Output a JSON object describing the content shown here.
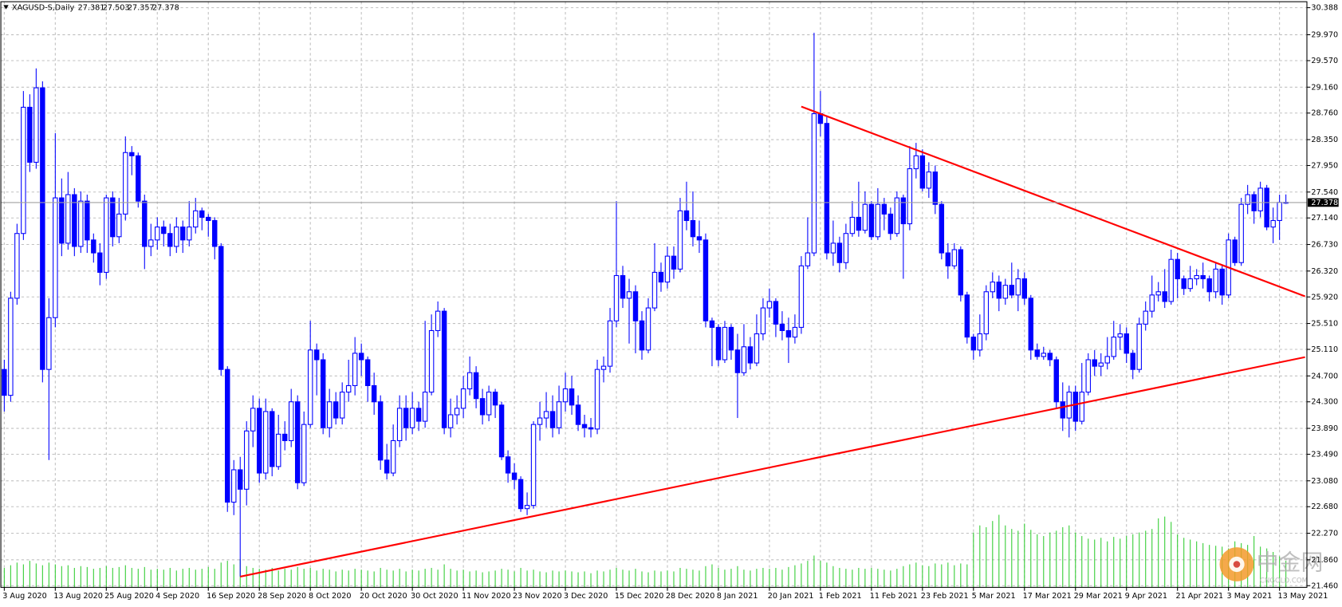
{
  "chart_data": {
    "type": "candlestick",
    "title": "XAGUSD-S,Daily",
    "categories": [
      "3 Aug 2020",
      null,
      null,
      null,
      null,
      null,
      null,
      null,
      "13 Aug 2020",
      null,
      null,
      null,
      null,
      null,
      null,
      null,
      "25 Aug 2020",
      null,
      null,
      null,
      null,
      null,
      null,
      null,
      "4 Sep 2020",
      null,
      null,
      null,
      null,
      null,
      null,
      null,
      "16 Sep 2020",
      null,
      null,
      null,
      null,
      null,
      null,
      null,
      "28 Sep 2020",
      null,
      null,
      null,
      null,
      null,
      null,
      null,
      "8 Oct 2020",
      null,
      null,
      null,
      null,
      null,
      null,
      null,
      "20 Oct 2020",
      null,
      null,
      null,
      null,
      null,
      null,
      null,
      "30 Oct 2020",
      null,
      null,
      null,
      null,
      null,
      null,
      null,
      "11 Nov 2020",
      null,
      null,
      null,
      null,
      null,
      null,
      null,
      "23 Nov 2020",
      null,
      null,
      null,
      null,
      null,
      null,
      null,
      "3 Dec 2020",
      null,
      null,
      null,
      null,
      null,
      null,
      null,
      "15 Dec 2020",
      null,
      null,
      null,
      null,
      null,
      null,
      null,
      "28 Dec 2020",
      null,
      null,
      null,
      null,
      null,
      null,
      null,
      "8 Jan 2021",
      null,
      null,
      null,
      null,
      null,
      null,
      null,
      "20 Jan 2021",
      null,
      null,
      null,
      null,
      null,
      null,
      null,
      "1 Feb 2021",
      null,
      null,
      null,
      null,
      null,
      null,
      null,
      "11 Feb 2021",
      null,
      null,
      null,
      null,
      null,
      null,
      null,
      "23 Feb 2021",
      null,
      null,
      null,
      null,
      null,
      null,
      null,
      "5 Mar 2021",
      null,
      null,
      null,
      null,
      null,
      null,
      null,
      "17 Mar 2021",
      null,
      null,
      null,
      null,
      null,
      null,
      null,
      "29 Mar 2021",
      null,
      null,
      null,
      null,
      null,
      null,
      null,
      "9 Apr 2021",
      null,
      null,
      null,
      null,
      null,
      null,
      null,
      "21 Apr 2021",
      null,
      null,
      null,
      null,
      null,
      null,
      null,
      "3 May 2021",
      null,
      null,
      null,
      null,
      null,
      null,
      null,
      "13 May 2021",
      null
    ],
    "open": [
      24.8,
      24.4,
      25.9,
      26.9,
      28.85,
      28.0,
      29.15,
      24.8,
      25.6,
      27.45,
      26.75,
      27.5,
      26.7,
      27.4,
      26.8,
      26.6,
      26.3,
      27.45,
      26.85,
      27.2,
      28.15,
      28.1,
      27.4,
      26.7,
      26.8,
      27.0,
      26.9,
      26.7,
      27.0,
      26.8,
      27.0,
      27.25,
      27.15,
      27.1,
      26.7,
      24.8,
      22.75,
      23.25,
      22.95,
      23.85,
      24.2,
      23.2,
      24.15,
      23.3,
      23.8,
      23.7,
      24.3,
      23.05,
      23.95,
      25.1,
      24.95,
      23.9,
      24.3,
      24.05,
      24.45,
      24.55,
      25.05,
      24.95,
      24.55,
      24.3,
      23.4,
      23.2,
      23.7,
      24.2,
      23.9,
      24.2,
      24.0,
      24.45,
      25.4,
      25.7,
      23.9,
      24.1,
      24.2,
      24.5,
      24.75,
      24.35,
      24.1,
      24.45,
      24.25,
      23.45,
      23.2,
      23.1,
      22.65,
      22.7,
      23.95,
      24.05,
      24.15,
      23.9,
      24.3,
      24.5,
      24.25,
      23.95,
      23.9,
      23.88,
      24.8,
      24.85,
      25.55,
      26.25,
      25.9,
      26.0,
      25.55,
      25.1,
      25.75,
      26.3,
      26.15,
      26.55,
      26.35,
      27.25,
      27.1,
      26.85,
      26.8,
      25.55,
      25.45,
      24.95,
      25.45,
      25.1,
      24.75,
      25.15,
      24.9,
      25.35,
      25.75,
      25.85,
      25.5,
      25.4,
      25.3,
      25.45,
      26.4,
      26.6,
      28.75,
      28.6,
      26.6,
      26.75,
      26.45,
      26.9,
      27.15,
      26.95,
      27.35,
      26.85,
      27.35,
      27.2,
      26.9,
      27.45,
      27.05,
      27.9,
      28.1,
      27.6,
      27.85,
      27.35,
      26.6,
      26.4,
      26.65,
      25.95,
      25.3,
      25.1,
      25.35,
      26.0,
      26.15,
      25.9,
      26.1,
      25.95,
      26.2,
      25.9,
      25.1,
      25.0,
      25.05,
      24.95,
      24.3,
      24.05,
      24.45,
      24.0,
      24.45,
      24.95,
      24.85,
      24.9,
      25.0,
      25.3,
      25.35,
      25.05,
      24.8,
      25.5,
      25.7,
      25.95,
      26.0,
      25.85,
      26.5,
      26.2,
      26.05,
      26.2,
      26.25,
      26.2,
      26.0,
      26.35,
      25.95,
      26.8,
      26.45,
      27.35,
      27.5,
      27.25,
      27.6,
      27.0,
      27.1,
      27.381
    ],
    "high": [
      24.95,
      26.0,
      27.05,
      29.1,
      29.05,
      29.45,
      29.25,
      25.9,
      28.45,
      27.75,
      27.85,
      27.6,
      27.55,
      27.5,
      26.9,
      26.75,
      27.5,
      27.55,
      27.45,
      28.4,
      28.25,
      28.15,
      27.5,
      27.05,
      27.15,
      27.1,
      27.05,
      27.15,
      27.1,
      27.4,
      27.45,
      27.3,
      27.2,
      27.15,
      26.75,
      24.85,
      23.4,
      23.45,
      24.0,
      24.4,
      24.35,
      24.35,
      24.2,
      24.1,
      24.0,
      24.5,
      24.4,
      24.15,
      25.55,
      25.2,
      25.05,
      24.5,
      24.45,
      24.6,
      24.95,
      25.3,
      25.2,
      25.0,
      24.75,
      24.4,
      23.65,
      23.95,
      24.4,
      24.4,
      24.45,
      24.3,
      25.55,
      25.65,
      25.85,
      25.75,
      24.35,
      24.4,
      24.7,
      25.0,
      24.85,
      24.5,
      24.55,
      24.5,
      24.3,
      23.55,
      23.35,
      23.15,
      22.9,
      24.0,
      24.3,
      24.45,
      24.4,
      24.55,
      24.75,
      24.7,
      24.4,
      24.1,
      24.05,
      24.95,
      25.0,
      25.75,
      27.4,
      26.4,
      26.2,
      26.1,
      25.7,
      25.9,
      26.75,
      26.45,
      26.7,
      26.7,
      27.45,
      27.7,
      27.55,
      27.1,
      26.9,
      25.6,
      25.5,
      25.55,
      25.5,
      25.35,
      25.5,
      25.3,
      25.65,
      25.9,
      26.05,
      25.9,
      25.7,
      25.6,
      25.65,
      26.55,
      27.15,
      30.0,
      29.1,
      28.7,
      27.1,
      26.85,
      27.05,
      27.4,
      27.7,
      27.55,
      27.4,
      27.6,
      27.45,
      27.3,
      27.55,
      27.5,
      28.25,
      28.3,
      28.2,
      28.0,
      27.95,
      27.4,
      26.75,
      26.75,
      26.7,
      26.0,
      25.35,
      25.65,
      26.1,
      26.3,
      26.25,
      26.2,
      26.45,
      26.35,
      26.3,
      25.95,
      25.2,
      25.15,
      25.1,
      25.0,
      24.6,
      24.55,
      24.55,
      24.9,
      25.05,
      25.1,
      25.05,
      25.3,
      25.55,
      25.5,
      25.45,
      25.1,
      25.6,
      25.85,
      26.25,
      26.15,
      26.35,
      26.65,
      26.6,
      26.25,
      26.4,
      26.35,
      26.45,
      26.25,
      26.45,
      26.4,
      26.9,
      26.85,
      27.45,
      27.65,
      27.55,
      27.7,
      27.65,
      27.3,
      27.5,
      27.503
    ],
    "low": [
      24.15,
      24.3,
      25.8,
      26.8,
      27.85,
      27.9,
      24.6,
      23.4,
      25.45,
      26.55,
      26.65,
      26.55,
      26.6,
      26.6,
      26.45,
      26.1,
      26.2,
      26.7,
      26.75,
      27.1,
      27.8,
      27.3,
      26.35,
      26.55,
      26.65,
      26.7,
      26.55,
      26.6,
      26.6,
      26.7,
      26.9,
      26.95,
      26.85,
      26.5,
      24.7,
      22.6,
      22.55,
      21.6,
      22.7,
      23.6,
      23.05,
      23.1,
      23.15,
      23.25,
      23.55,
      23.6,
      22.95,
      23.0,
      23.9,
      24.4,
      23.8,
      23.75,
      23.95,
      23.95,
      24.3,
      24.4,
      24.7,
      24.3,
      24.1,
      23.25,
      23.1,
      23.15,
      23.6,
      23.7,
      23.8,
      23.85,
      23.9,
      24.4,
      25.3,
      23.8,
      23.75,
      23.95,
      24.05,
      24.4,
      24.2,
      23.95,
      24.0,
      24.05,
      23.4,
      23.05,
      22.95,
      22.6,
      22.55,
      22.65,
      23.7,
      23.9,
      23.75,
      23.8,
      24.15,
      24.1,
      23.85,
      23.75,
      23.75,
      23.8,
      24.6,
      24.75,
      25.45,
      25.75,
      25.2,
      25.05,
      24.95,
      25.05,
      25.7,
      26.0,
      26.05,
      26.2,
      26.3,
      26.95,
      26.7,
      26.6,
      25.45,
      24.85,
      24.85,
      24.9,
      24.95,
      24.05,
      24.7,
      24.8,
      24.85,
      25.25,
      25.6,
      25.3,
      25.25,
      24.9,
      25.2,
      25.35,
      26.35,
      26.55,
      28.4,
      26.5,
      26.4,
      26.3,
      26.35,
      26.85,
      26.85,
      26.9,
      26.8,
      26.8,
      26.95,
      26.8,
      26.85,
      26.2,
      26.95,
      27.75,
      27.55,
      27.45,
      27.2,
      26.5,
      26.2,
      26.35,
      25.85,
      25.2,
      24.95,
      25.0,
      25.25,
      25.9,
      25.7,
      25.8,
      25.9,
      25.7,
      25.8,
      24.95,
      24.95,
      24.95,
      24.85,
      24.2,
      23.85,
      23.75,
      23.85,
      23.95,
      24.4,
      24.7,
      24.7,
      24.8,
      24.95,
      25.1,
      24.9,
      24.65,
      24.75,
      25.4,
      25.6,
      25.85,
      25.75,
      25.8,
      25.9,
      25.95,
      26.0,
      26.1,
      26.05,
      25.85,
      25.9,
      25.8,
      25.9,
      26.4,
      26.4,
      27.2,
      27.05,
      27.15,
      26.95,
      26.75,
      26.8,
      27.357
    ],
    "close": [
      24.4,
      25.9,
      26.9,
      28.85,
      28.0,
      29.15,
      24.8,
      25.6,
      27.45,
      26.75,
      27.5,
      26.7,
      27.4,
      26.8,
      26.6,
      26.3,
      27.45,
      26.85,
      27.2,
      28.15,
      28.1,
      27.4,
      26.7,
      26.8,
      27.0,
      26.9,
      26.7,
      27.0,
      26.8,
      27.0,
      27.25,
      27.15,
      27.1,
      26.7,
      24.8,
      22.75,
      23.25,
      22.95,
      23.85,
      24.2,
      23.2,
      24.15,
      23.3,
      23.8,
      23.7,
      24.3,
      23.05,
      23.95,
      25.1,
      24.95,
      23.9,
      24.3,
      24.05,
      24.45,
      24.55,
      25.05,
      24.95,
      24.55,
      24.3,
      23.4,
      23.2,
      23.7,
      24.2,
      23.9,
      24.2,
      24.0,
      24.45,
      25.4,
      25.7,
      23.9,
      24.1,
      24.2,
      24.5,
      24.75,
      24.35,
      24.1,
      24.45,
      24.25,
      23.45,
      23.2,
      23.1,
      22.65,
      22.7,
      23.95,
      24.05,
      24.15,
      23.9,
      24.3,
      24.5,
      24.25,
      23.95,
      23.9,
      23.88,
      24.8,
      24.85,
      25.55,
      26.25,
      25.9,
      26.0,
      25.55,
      25.1,
      25.75,
      26.3,
      26.15,
      26.55,
      26.35,
      27.25,
      27.1,
      26.85,
      26.8,
      25.55,
      25.45,
      24.95,
      25.45,
      25.1,
      24.75,
      25.15,
      24.9,
      25.35,
      25.75,
      25.85,
      25.5,
      25.4,
      25.3,
      25.45,
      26.4,
      26.6,
      28.75,
      28.6,
      26.6,
      26.75,
      26.45,
      26.9,
      27.15,
      26.95,
      27.35,
      26.85,
      27.35,
      27.2,
      26.9,
      27.45,
      27.05,
      27.9,
      28.1,
      27.6,
      27.85,
      27.35,
      26.6,
      26.4,
      26.65,
      25.95,
      25.3,
      25.1,
      25.35,
      26.0,
      26.15,
      25.9,
      26.1,
      25.95,
      26.2,
      25.9,
      25.1,
      25.0,
      25.05,
      24.95,
      24.3,
      24.05,
      24.45,
      24.0,
      24.45,
      24.95,
      24.85,
      24.9,
      25.0,
      25.3,
      25.35,
      25.05,
      24.8,
      25.5,
      25.7,
      25.95,
      26.0,
      25.85,
      26.5,
      26.2,
      26.05,
      26.2,
      26.25,
      26.2,
      26.0,
      26.35,
      25.95,
      26.8,
      26.45,
      27.35,
      27.5,
      27.25,
      27.6,
      27.0,
      27.1,
      27.38,
      27.378
    ],
    "volume": [
      22,
      25,
      28,
      26,
      30,
      27,
      25,
      28,
      26,
      24,
      25,
      22,
      24,
      23,
      21,
      22,
      24,
      22,
      23,
      25,
      22,
      21,
      23,
      20,
      21,
      20,
      22,
      19,
      21,
      22,
      20,
      21,
      23,
      21,
      28,
      30,
      26,
      32,
      24,
      22,
      21,
      20,
      22,
      19,
      21,
      20,
      23,
      21,
      22,
      19,
      21,
      20,
      18,
      20,
      19,
      21,
      20,
      19,
      18,
      22,
      20,
      19,
      21,
      18,
      20,
      19,
      21,
      22,
      20,
      26,
      21,
      19,
      20,
      18,
      19,
      17,
      18,
      19,
      21,
      20,
      18,
      22,
      19,
      20,
      18,
      17,
      19,
      18,
      19,
      18,
      17,
      18,
      16,
      19,
      18,
      20,
      22,
      20,
      19,
      21,
      18,
      17,
      19,
      18,
      19,
      18,
      22,
      21,
      20,
      19,
      24,
      26,
      22,
      20,
      21,
      24,
      20,
      19,
      21,
      22,
      21,
      22,
      20,
      23,
      25,
      27,
      30,
      36,
      30,
      28,
      24,
      22,
      21,
      20,
      22,
      21,
      22,
      21,
      20,
      19,
      21,
      24,
      26,
      28,
      25,
      24,
      27,
      26,
      28,
      25,
      27,
      26,
      62,
      70,
      68,
      75,
      82,
      70,
      66,
      64,
      72,
      65,
      60,
      58,
      62,
      64,
      68,
      70,
      62,
      58,
      55,
      54,
      56,
      52,
      57,
      55,
      58,
      60,
      62,
      64,
      66,
      78,
      80,
      74,
      60,
      56,
      54,
      52,
      50,
      48,
      47,
      46,
      44,
      52,
      50,
      48,
      58,
      46,
      44,
      40,
      35,
      30
    ],
    "up_color": "#ffffff",
    "down_color": "#0000ff",
    "wick_color": "#0000ff",
    "volume_color": "#32cd32",
    "ylim": [
      21.434,
      30.48
    ],
    "yticks": [
      30.388,
      {
        "value": 29.97,
        "label": "29.970"
      },
      {
        "value": 29.57,
        "label": "29.570"
      },
      {
        "value": 29.16,
        "label": "29.160"
      },
      {
        "value": 28.76,
        "label": "28.760"
      },
      {
        "value": 28.35,
        "label": "28.350"
      },
      {
        "value": 27.95,
        "label": "27.950"
      },
      {
        "value": 27.54,
        "label": "27.540"
      },
      {
        "value": 27.14,
        "label": "27.140"
      },
      {
        "value": 26.73,
        "label": "26.730"
      },
      {
        "value": 26.32,
        "label": "26.320"
      },
      {
        "value": 25.92,
        "label": "25.920"
      },
      {
        "value": 25.51,
        "label": "25.510"
      },
      {
        "value": 25.11,
        "label": "25.110"
      },
      {
        "value": 24.7,
        "label": "24.700"
      },
      {
        "value": 24.3,
        "label": "24.300"
      },
      {
        "value": 23.89,
        "label": "23.890"
      },
      {
        "value": 23.49,
        "label": "23.490"
      },
      {
        "value": 23.08,
        "label": "23.080"
      },
      {
        "value": 22.68,
        "label": "22.680"
      },
      {
        "value": 22.27,
        "label": "22.270"
      },
      {
        "value": 21.86,
        "label": "21.860"
      },
      {
        "value": 21.46,
        "label": "21.460"
      }
    ],
    "grid": true,
    "trendlines": [
      {
        "color": "#ff0000",
        "x": [
          125,
          204
        ],
        "y": [
          28.86,
          25.93
        ]
      },
      {
        "color": "#ff0000",
        "x": [
          37,
          204
        ],
        "y": [
          21.6,
          24.99
        ]
      }
    ],
    "watermark": {
      "text": "中金网",
      "subtext": "CNGOLD.COM"
    }
  }
}
